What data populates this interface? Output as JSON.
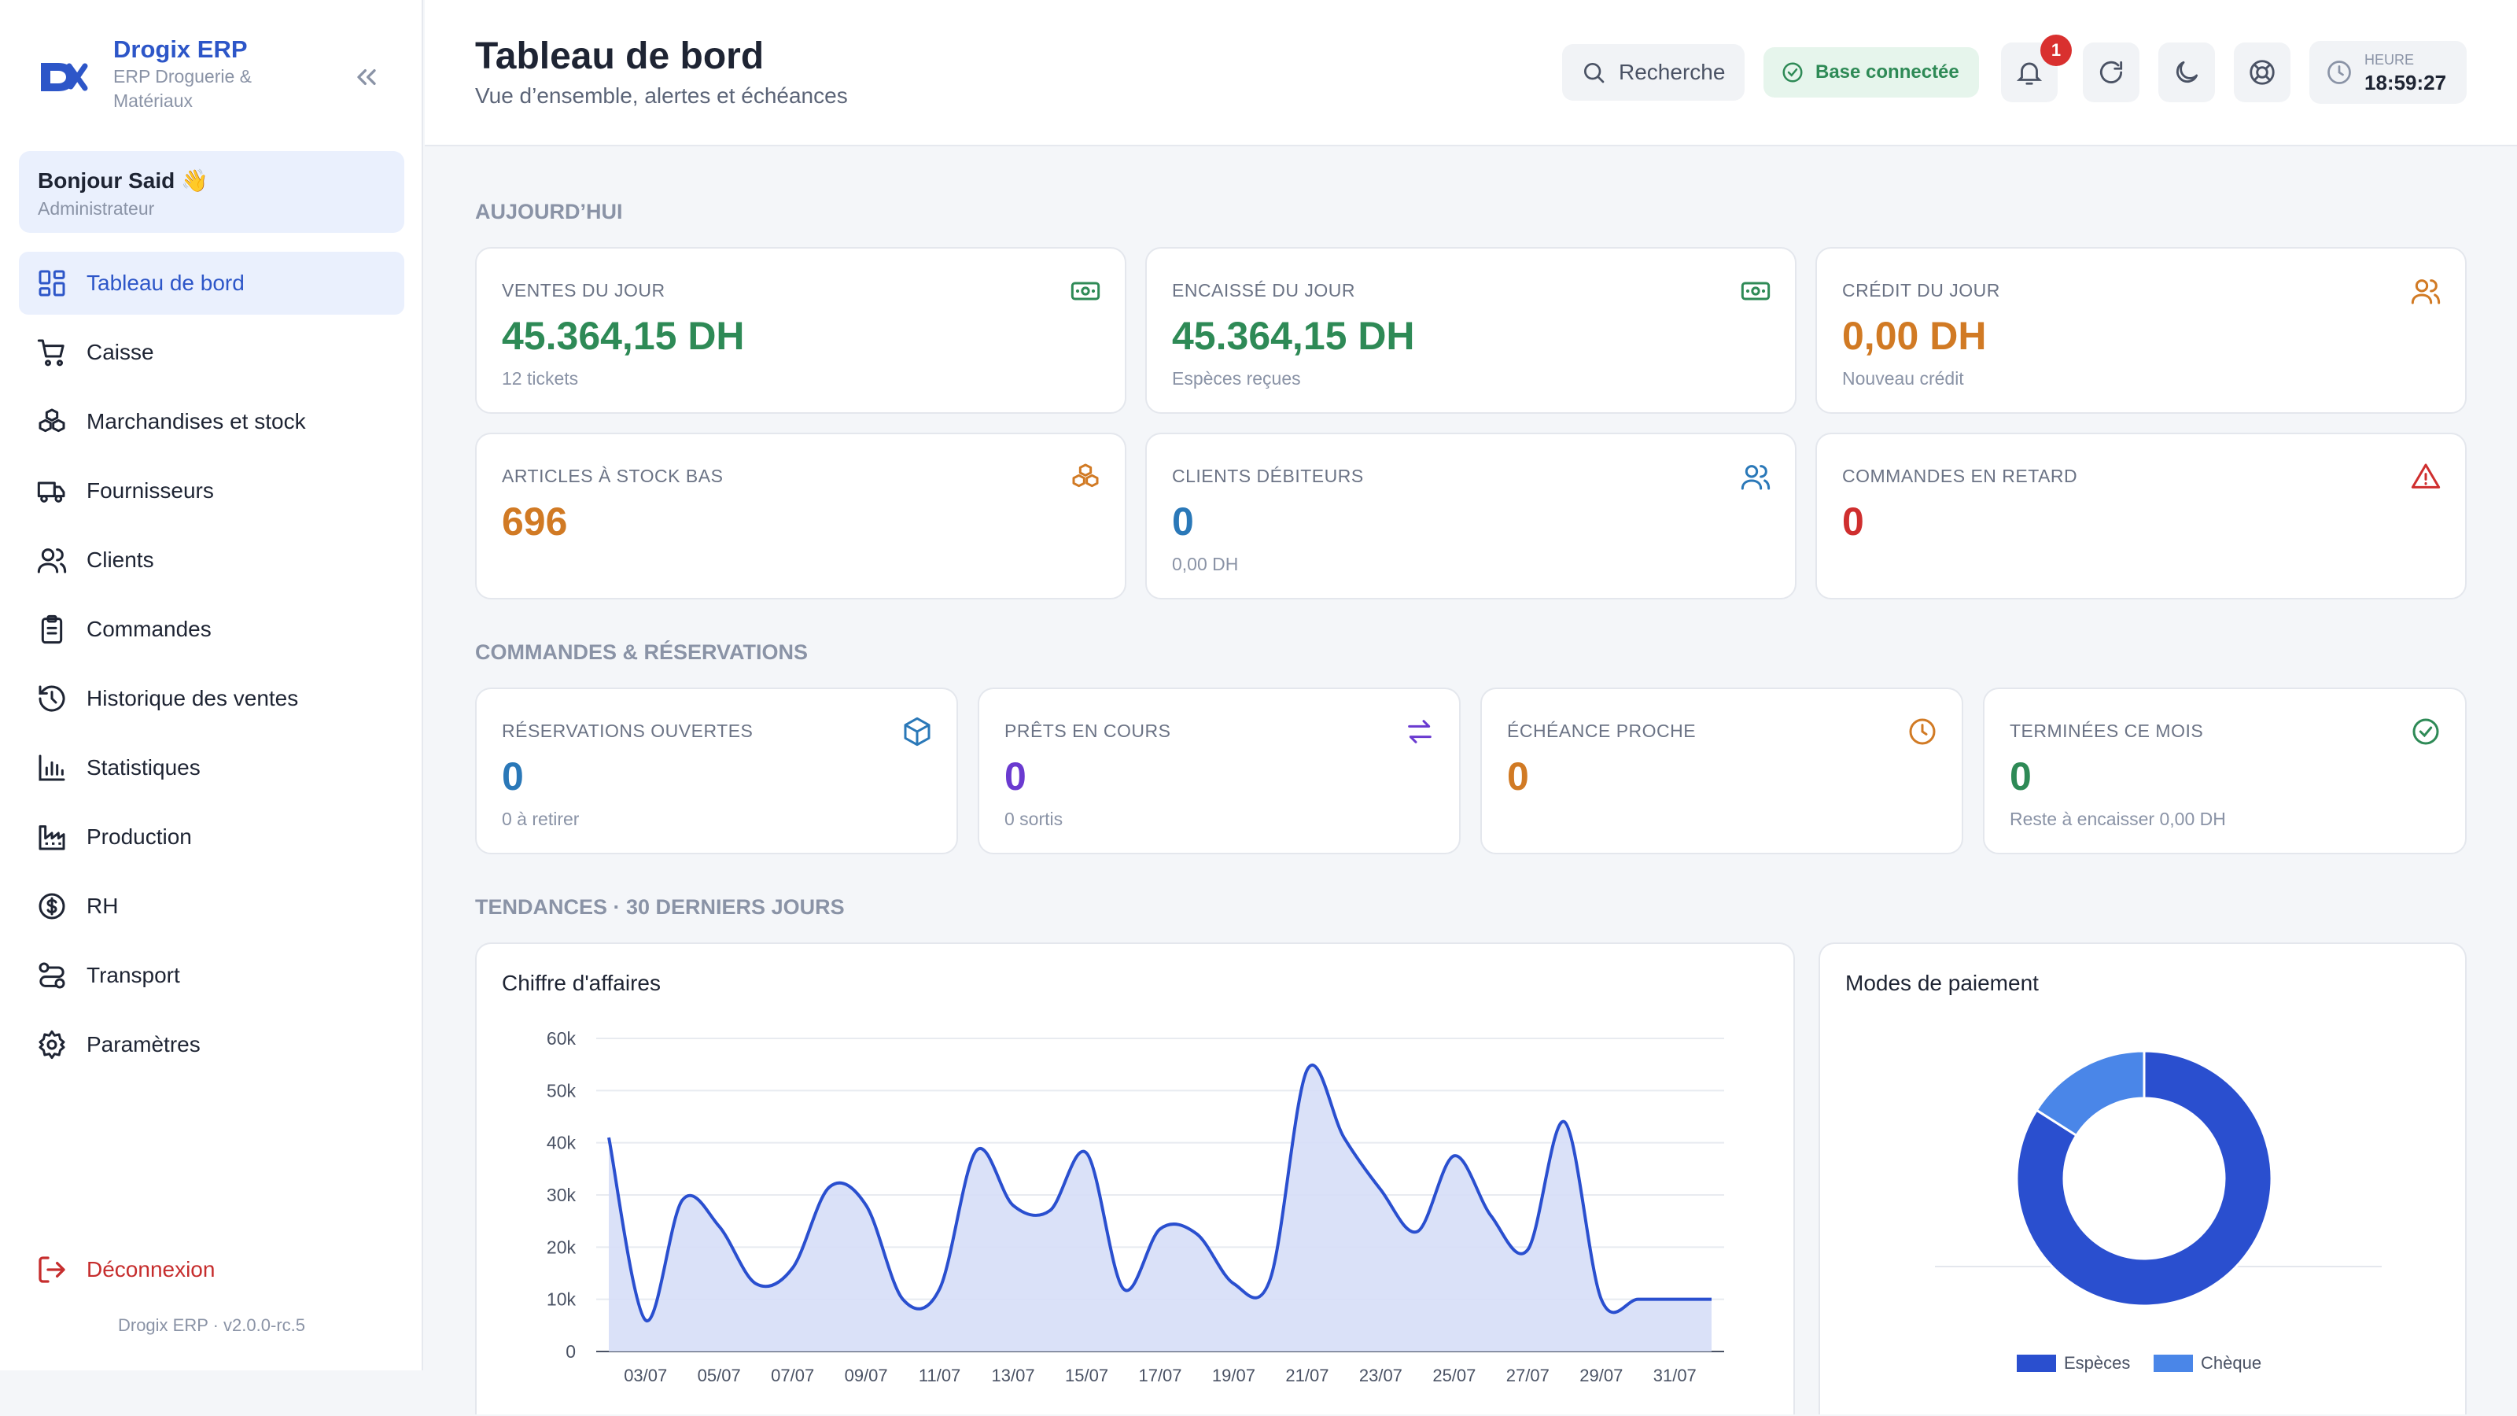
{
  "brand": {
    "name": "Drogix ERP",
    "subtitle": "ERP Droguerie & Matériaux"
  },
  "greeting": {
    "name": "Bonjour Said 👋",
    "role": "Administrateur"
  },
  "nav": [
    {
      "label": "Tableau de bord",
      "icon": "dashboard-icon",
      "active": true
    },
    {
      "label": "Caisse",
      "icon": "cart-icon"
    },
    {
      "label": "Marchandises et stock",
      "icon": "boxes-icon"
    },
    {
      "label": "Fournisseurs",
      "icon": "truck-icon"
    },
    {
      "label": "Clients",
      "icon": "users-icon"
    },
    {
      "label": "Commandes",
      "icon": "clipboard-icon"
    },
    {
      "label": "Historique des ventes",
      "icon": "history-icon"
    },
    {
      "label": "Statistiques",
      "icon": "bar-chart-icon"
    },
    {
      "label": "Production",
      "icon": "factory-icon"
    },
    {
      "label": "RH",
      "icon": "dollar-circle-icon"
    },
    {
      "label": "Transport",
      "icon": "route-icon"
    },
    {
      "label": "Paramètres",
      "icon": "gear-icon"
    }
  ],
  "logout_label": "Déconnexion",
  "version": "Drogix ERP · v2.0.0-rc.5",
  "header": {
    "title": "Tableau de bord",
    "subtitle": "Vue d’ensemble, alertes et échéances",
    "search_label": "Recherche",
    "db_status": "Base connectée",
    "notifications_count": "1",
    "clock_label": "HEURE",
    "clock_time": "18:59:27"
  },
  "sections": {
    "today": "AUJOURD’HUI",
    "orders": "COMMANDES & RÉSERVATIONS",
    "trends": "TENDANCES · 30 DERNIERS JOURS"
  },
  "today_cards": [
    {
      "label": "VENTES DU JOUR",
      "value": "45.364,15 DH",
      "sub": "12 tickets",
      "color": "#2e8a56",
      "icon": "banknote-icon"
    },
    {
      "label": "ENCAISSÉ DU JOUR",
      "value": "45.364,15 DH",
      "sub": "Espèces reçues",
      "color": "#2e8a56",
      "icon": "banknote-icon"
    },
    {
      "label": "CRÉDIT DU JOUR",
      "value": "0,00 DH",
      "sub": "Nouveau crédit",
      "color": "#d17a24",
      "icon": "users-icon"
    },
    {
      "label": "ARTICLES À STOCK BAS",
      "value": "696",
      "sub": "",
      "color": "#d17a24",
      "icon": "boxes-icon"
    },
    {
      "label": "CLIENTS DÉBITEURS",
      "value": "0",
      "sub": "0,00 DH",
      "color": "#2a78b8",
      "icon": "users-icon"
    },
    {
      "label": "COMMANDES EN RETARD",
      "value": "0",
      "sub": "",
      "color": "#cf2e2e",
      "icon": "warning-icon"
    }
  ],
  "order_cards": [
    {
      "label": "RÉSERVATIONS OUVERTES",
      "value": "0",
      "sub": "0 à retirer",
      "color": "#2a78b8",
      "icon": "package-icon"
    },
    {
      "label": "PRÊTS EN COURS",
      "value": "0",
      "sub": "0 sortis",
      "color": "#6a3ad0",
      "icon": "swap-icon"
    },
    {
      "label": "ÉCHÉANCE PROCHE",
      "value": "0",
      "sub": "",
      "color": "#d17a24",
      "icon": "clock-icon"
    },
    {
      "label": "TERMINÉES CE MOIS",
      "value": "0",
      "sub": "Reste à encaisser 0,00 DH",
      "color": "#2e8a56",
      "icon": "check-circle-icon"
    }
  ],
  "revenue_panel_title": "Chiffre d'affaires",
  "payment_panel_title": "Modes de paiement",
  "colors": {
    "accent": "#2d56c8",
    "line": "#2a4fcf",
    "area": "#d6def7",
    "cash": "#2a4fcf",
    "cheque": "#4a86e8"
  },
  "chart_data": [
    {
      "type": "area",
      "title": "Chiffre d'affaires",
      "ylim": [
        0,
        60000
      ],
      "yticks": [
        0,
        10000,
        20000,
        30000,
        40000,
        50000,
        60000
      ],
      "ytick_labels": [
        "0",
        "10k",
        "20k",
        "30k",
        "40k",
        "50k",
        "60k"
      ],
      "xtick_labels": [
        "03/07",
        "05/07",
        "07/07",
        "09/07",
        "11/07",
        "13/07",
        "15/07",
        "17/07",
        "19/07",
        "21/07",
        "23/07",
        "25/07",
        "27/07",
        "29/07",
        "31/07"
      ],
      "x": [
        "02/07",
        "03/07",
        "04/07",
        "05/07",
        "06/07",
        "07/07",
        "08/07",
        "09/07",
        "10/07",
        "11/07",
        "12/07",
        "13/07",
        "14/07",
        "15/07",
        "16/07",
        "17/07",
        "18/07",
        "19/07",
        "20/07",
        "21/07",
        "22/07",
        "23/07",
        "24/07",
        "25/07",
        "26/07",
        "27/07",
        "28/07",
        "29/07",
        "30/07",
        "31/07",
        "01/08"
      ],
      "values": [
        41000,
        6000,
        29000,
        24000,
        13000,
        16000,
        31500,
        28000,
        10000,
        12000,
        38500,
        28000,
        27000,
        38000,
        12000,
        23500,
        22500,
        13000,
        14000,
        54000,
        41000,
        31000,
        23000,
        37500,
        26000,
        19500,
        44000,
        10000,
        10000,
        10000,
        10000
      ]
    },
    {
      "type": "pie",
      "title": "Modes de paiement",
      "labels": [
        "Espèces",
        "Chèque"
      ],
      "values": [
        84,
        16
      ]
    }
  ]
}
